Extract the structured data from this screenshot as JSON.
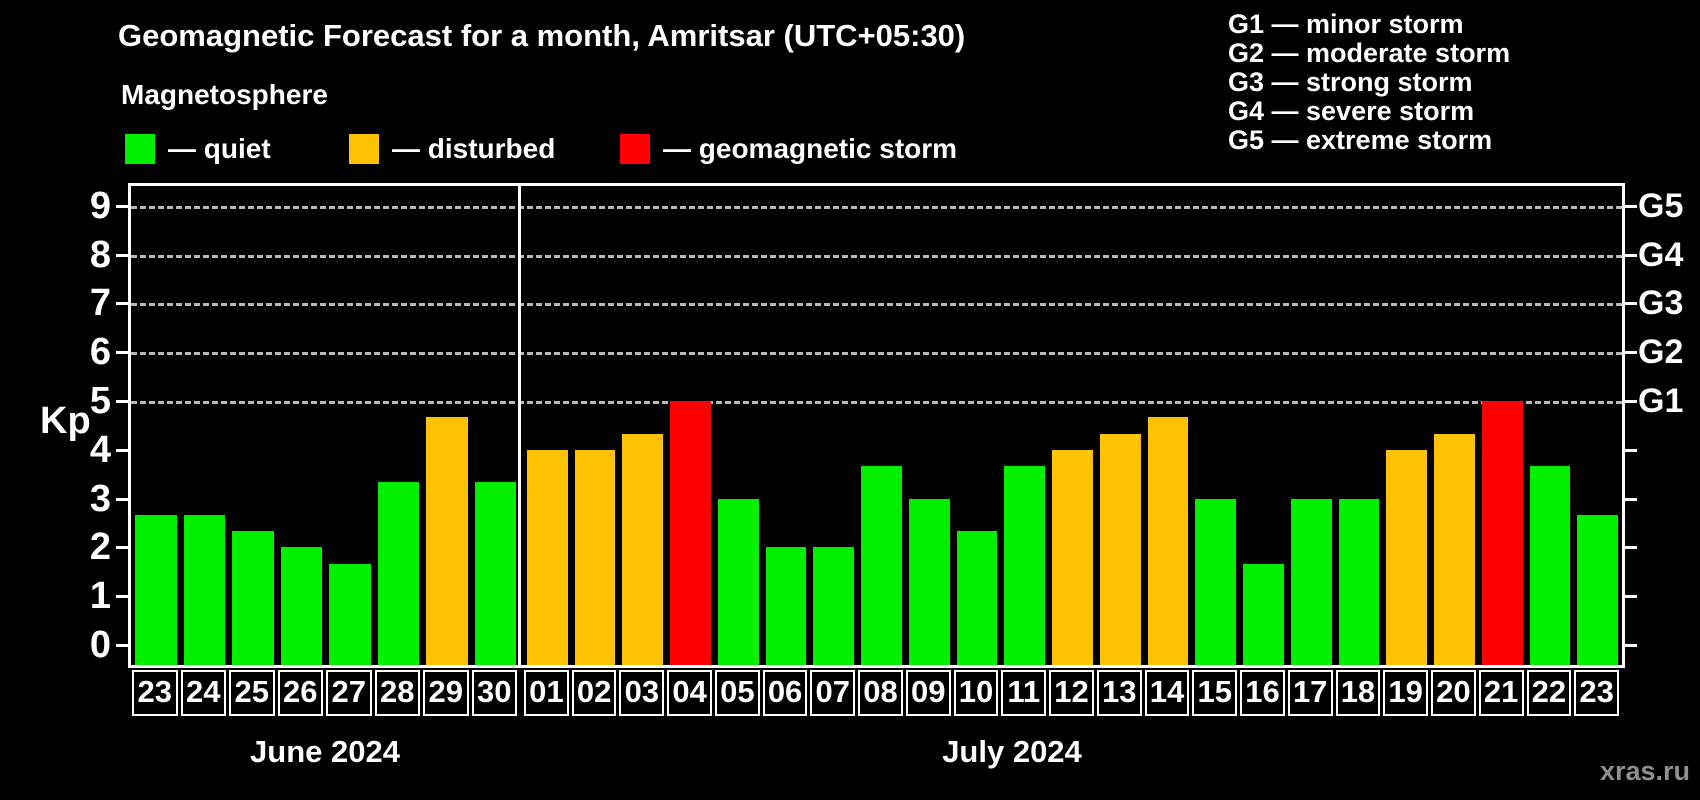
{
  "header": {
    "title": "Geomagnetic Forecast for a month, Amritsar (UTC+05:30)",
    "subtitle": "Magnetosphere"
  },
  "legend": {
    "items": [
      {
        "key": "quiet",
        "label": "— quiet",
        "color": "#00f000"
      },
      {
        "key": "disturbed",
        "label": "— disturbed",
        "color": "#ffc200"
      },
      {
        "key": "storm",
        "label": "— geomagnetic storm",
        "color": "#ff0000"
      }
    ]
  },
  "g_legend": {
    "items": [
      {
        "label": "G1 — minor storm"
      },
      {
        "label": "G2 — moderate storm"
      },
      {
        "label": "G3 — strong storm"
      },
      {
        "label": "G4 — severe storm"
      },
      {
        "label": "G5 — extreme storm"
      }
    ]
  },
  "chart_data": {
    "type": "bar",
    "title": "Geomagnetic Forecast for a month, Amritsar (UTC+05:30)",
    "ylabel": "Kp",
    "ylim": [
      0,
      9
    ],
    "yticks": [
      0,
      1,
      2,
      3,
      4,
      5,
      6,
      7,
      8,
      9
    ],
    "gridlines_at": [
      5,
      6,
      7,
      8,
      9
    ],
    "grid": "dashed horizontal at storm levels only",
    "legend_position": "top",
    "right_axis": [
      {
        "kp": 5,
        "label": "G1"
      },
      {
        "kp": 6,
        "label": "G2"
      },
      {
        "kp": 7,
        "label": "G3"
      },
      {
        "kp": 8,
        "label": "G4"
      },
      {
        "kp": 9,
        "label": "G5"
      }
    ],
    "categories": [
      "23",
      "24",
      "25",
      "26",
      "27",
      "28",
      "29",
      "30",
      "01",
      "02",
      "03",
      "04",
      "05",
      "06",
      "07",
      "08",
      "09",
      "10",
      "11",
      "12",
      "13",
      "14",
      "15",
      "16",
      "17",
      "18",
      "19",
      "20",
      "21",
      "22",
      "23"
    ],
    "values": [
      2.67,
      2.67,
      2.33,
      2.0,
      1.67,
      3.33,
      4.67,
      3.33,
      4.0,
      4.0,
      4.33,
      5.0,
      3.0,
      2.0,
      2.0,
      3.67,
      3.0,
      2.33,
      3.67,
      4.0,
      4.33,
      4.67,
      3.0,
      1.67,
      3.0,
      3.0,
      4.0,
      4.33,
      5.0,
      3.67,
      2.67
    ],
    "statuses": [
      "quiet",
      "quiet",
      "quiet",
      "quiet",
      "quiet",
      "quiet",
      "disturbed",
      "quiet",
      "disturbed",
      "disturbed",
      "disturbed",
      "storm",
      "quiet",
      "quiet",
      "quiet",
      "quiet",
      "quiet",
      "quiet",
      "quiet",
      "disturbed",
      "disturbed",
      "disturbed",
      "quiet",
      "quiet",
      "quiet",
      "quiet",
      "disturbed",
      "disturbed",
      "storm",
      "quiet",
      "quiet"
    ],
    "colors": {
      "quiet": "#00f000",
      "disturbed": "#ffc200",
      "storm": "#ff0000"
    },
    "months": [
      {
        "label": "June 2024",
        "days": 8
      },
      {
        "label": "July 2024",
        "days": 23
      }
    ]
  },
  "watermark": "xras.ru"
}
